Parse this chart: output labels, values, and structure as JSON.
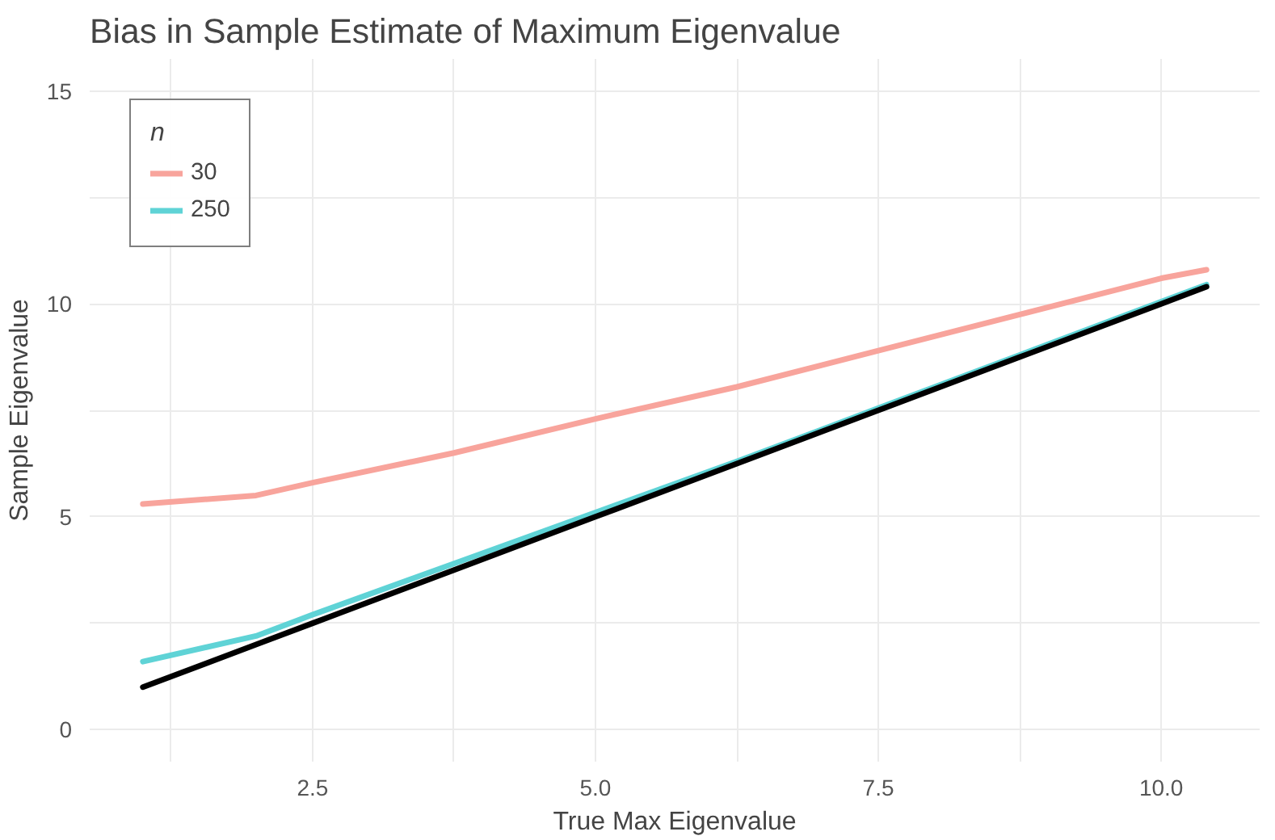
{
  "chart_data": {
    "type": "line",
    "title": "Bias in Sample Estimate of Maximum Eigenvalue",
    "xlabel": "True Max Eigenvalue",
    "ylabel": "Sample Eigenvalue",
    "legend_title": "n",
    "x": [
      1.0,
      2.0,
      2.5,
      3.75,
      5.0,
      6.25,
      7.5,
      8.75,
      10.0,
      10.4
    ],
    "series": [
      {
        "name": "30",
        "color": "#f8a49c",
        "values": [
          5.3,
          5.5,
          5.8,
          6.5,
          7.3,
          8.05,
          8.9,
          9.75,
          10.6,
          10.8
        ]
      },
      {
        "name": "250",
        "color": "#5fd3d6",
        "values": [
          1.6,
          2.2,
          2.7,
          3.9,
          5.1,
          6.3,
          7.55,
          8.8,
          10.05,
          10.45
        ]
      },
      {
        "color": "#000000",
        "values": [
          1.0,
          2.0,
          2.5,
          3.75,
          5.0,
          6.25,
          7.5,
          8.75,
          10.0,
          10.4
        ]
      }
    ],
    "xlim": [
      0.53,
      10.87
    ],
    "ylim": [
      -0.75,
      15.75
    ],
    "xticks": [
      {
        "value": 1.25,
        "label": null
      },
      {
        "value": 2.5,
        "label": "2.5"
      },
      {
        "value": 3.75,
        "label": null
      },
      {
        "value": 5.0,
        "label": "5.0"
      },
      {
        "value": 6.25,
        "label": null
      },
      {
        "value": 7.5,
        "label": "7.5"
      },
      {
        "value": 8.75,
        "label": null
      },
      {
        "value": 10.0,
        "label": "10.0"
      }
    ],
    "yticks": [
      0,
      {
        "value": 2.5,
        "label": null
      },
      5,
      {
        "value": 7.5,
        "label": null
      },
      10,
      {
        "value": 12.5,
        "label": null
      },
      15
    ],
    "grid": true,
    "legend": "top left",
    "line_style": "solid"
  }
}
